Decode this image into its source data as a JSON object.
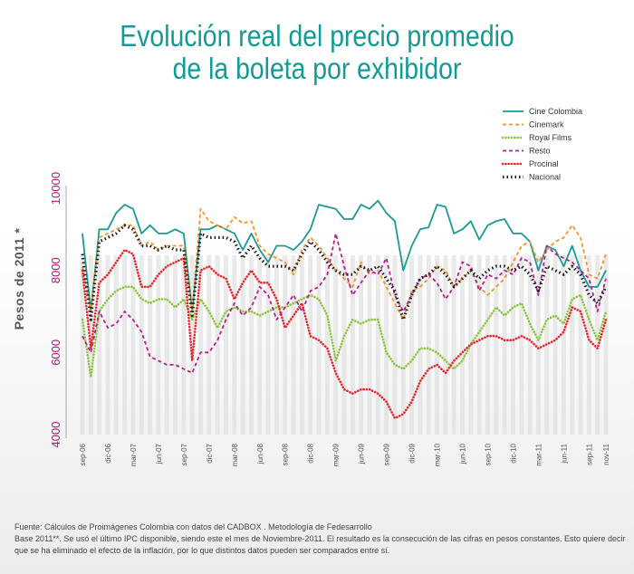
{
  "title_line1": "Evolución real del precio promedio",
  "title_line2": "de la boleta por exhibidor",
  "footer": {
    "line1": "Fuente: Cálculos de Proimágenes Colombia con datos del CADBOX . Metodología de Fedesarrollo",
    "line2": "Base 2011**. Se usó el último IPC disponible, siendo este el mes de Noviembre-2011. El resultado es la consecución de las cifras en pesos constantes. Esto quiere decir",
    "line3": "que se ha eliminado el efecto de la inflación, por lo que distintos datos pueden ser comparados entre sí."
  },
  "chart_data": {
    "type": "line",
    "title": "Evolución real del precio promedio de la boleta por exhibidor",
    "ylabel": "Pesos de  2011 *",
    "ylim": [
      4000,
      10000
    ],
    "yticks": [
      "4000",
      "6000",
      "8000",
      "10000"
    ],
    "xticks": [
      "sep-06",
      "dic-06",
      "mar-07",
      "jun-07",
      "sep-07",
      "dic-07",
      "mar-08",
      "jun-08",
      "sep-08",
      "dic-08",
      "mar-09",
      "jun-09",
      "sep-09",
      "dic-09",
      "mar-10",
      "jun-10",
      "sep-10",
      "dic-10",
      "mar-11",
      "jun-11",
      "sep-11",
      "nov-11"
    ],
    "x": [
      "sep-06",
      "oct-06",
      "nov-06",
      "dic-06",
      "ene-07",
      "feb-07",
      "mar-07",
      "abr-07",
      "may-07",
      "jun-07",
      "jul-07",
      "ago-07",
      "sep-07",
      "oct-07",
      "nov-07",
      "dic-07",
      "ene-08",
      "feb-08",
      "mar-08",
      "abr-08",
      "may-08",
      "jun-08",
      "jul-08",
      "ago-08",
      "sep-08",
      "oct-08",
      "nov-08",
      "dic-08",
      "ene-09",
      "feb-09",
      "mar-09",
      "abr-09",
      "may-09",
      "jun-09",
      "jul-09",
      "ago-09",
      "sep-09",
      "oct-09",
      "nov-09",
      "dic-09",
      "ene-10",
      "feb-10",
      "mar-10",
      "abr-10",
      "may-10",
      "jun-10",
      "jul-10",
      "ago-10",
      "sep-10",
      "oct-10",
      "nov-10",
      "dic-10",
      "ene-11",
      "feb-11",
      "mar-11",
      "abr-11",
      "may-11",
      "jun-11",
      "jul-11",
      "ago-11",
      "sep-11",
      "oct-11",
      "nov-11"
    ],
    "legend_position": "top-right",
    "series": [
      {
        "name": "Cine Colombia",
        "color": "#1a9a97",
        "style": "solid",
        "values": [
          8900,
          7000,
          9000,
          9000,
          9400,
          9600,
          9500,
          8900,
          9100,
          8900,
          8900,
          9000,
          8900,
          7000,
          9000,
          9000,
          9100,
          9000,
          8900,
          8500,
          8900,
          8500,
          8200,
          8600,
          8600,
          8500,
          8700,
          9000,
          9600,
          9550,
          9500,
          9250,
          9250,
          9600,
          9500,
          9700,
          9400,
          9200,
          8000,
          8600,
          9000,
          9050,
          9600,
          9550,
          8900,
          9000,
          9200,
          8750,
          9100,
          9200,
          9250,
          8900,
          8900,
          8700,
          8000,
          8600,
          8500,
          8100,
          8600,
          8000,
          7600,
          7600,
          8000
        ]
      },
      {
        "name": "Cinemark",
        "color": "#f0952a",
        "style": "dashed",
        "values": [
          8100,
          7000,
          8800,
          8900,
          9000,
          9100,
          9100,
          8600,
          8700,
          8500,
          8600,
          8600,
          8600,
          7000,
          9500,
          9200,
          9100,
          9000,
          9300,
          9150,
          9200,
          8600,
          8400,
          8300,
          8200,
          7900,
          8500,
          8800,
          8600,
          8300,
          8000,
          7800,
          7600,
          8200,
          7900,
          8000,
          7600,
          7200,
          6800,
          7500,
          7600,
          7800,
          8100,
          8000,
          7600,
          7800,
          8000,
          7600,
          7400,
          7600,
          7800,
          8200,
          8600,
          8700,
          8200,
          8500,
          8700,
          8800,
          9100,
          8800,
          7900,
          7800,
          8400
        ]
      },
      {
        "name": "Royal Films",
        "color": "#8cc63f",
        "style": "dotted",
        "values": [
          6800,
          5400,
          7000,
          7300,
          7500,
          7600,
          7600,
          7300,
          7200,
          7300,
          7300,
          7100,
          7300,
          6800,
          7300,
          7000,
          6600,
          7000,
          7100,
          7000,
          7000,
          6900,
          7000,
          7100,
          7100,
          7200,
          7300,
          7400,
          7300,
          6900,
          5800,
          6400,
          6800,
          6700,
          6800,
          6800,
          6000,
          5700,
          5600,
          5800,
          6100,
          6100,
          6000,
          5800,
          5600,
          5800,
          6200,
          6500,
          6800,
          7100,
          6900,
          7100,
          7200,
          6700,
          6300,
          6800,
          6900,
          6700,
          7300,
          7400,
          6800,
          6300,
          7000
        ]
      },
      {
        "name": "Resto",
        "color": "#b5208f",
        "style": "dashed",
        "values": [
          6400,
          6000,
          7000,
          6600,
          6700,
          7000,
          6800,
          6500,
          5900,
          5800,
          5700,
          5700,
          5600,
          5500,
          6000,
          6000,
          6300,
          6800,
          7200,
          6900,
          7100,
          7600,
          7400,
          6800,
          7100,
          7400,
          7000,
          7500,
          7600,
          7900,
          8900,
          8100,
          7400,
          7700,
          8000,
          7900,
          8300,
          7400,
          7000,
          7400,
          7800,
          7900,
          7700,
          7300,
          7600,
          8200,
          8100,
          7500,
          7900,
          7800,
          8000,
          7900,
          8300,
          8200,
          7400,
          8600,
          8400,
          8300,
          8200,
          8000,
          7800,
          7000,
          7800
        ]
      },
      {
        "name": "Procinal",
        "color": "#e8242b",
        "style": "dotted",
        "values": [
          8000,
          6100,
          7700,
          7900,
          8200,
          8500,
          8400,
          7600,
          7600,
          7900,
          8100,
          8200,
          8300,
          5800,
          8000,
          8100,
          7900,
          7800,
          7300,
          7700,
          8000,
          7700,
          7700,
          7300,
          6600,
          6900,
          7200,
          6400,
          6300,
          6100,
          5500,
          5100,
          5000,
          5100,
          5100,
          5000,
          4800,
          4400,
          4500,
          4800,
          5300,
          5600,
          5700,
          5500,
          5800,
          6000,
          6200,
          6300,
          6400,
          6400,
          6300,
          6300,
          6400,
          6300,
          6100,
          6200,
          6300,
          6500,
          7100,
          7000,
          6300,
          6100,
          6800
        ]
      },
      {
        "name": "Nacional",
        "color": "#1a1a1a",
        "style": "dotted-thick",
        "values": [
          8400,
          6800,
          8700,
          8800,
          8900,
          9100,
          9000,
          8600,
          8600,
          8500,
          8600,
          8500,
          8500,
          6900,
          8900,
          8800,
          8800,
          8800,
          8700,
          8300,
          8600,
          8300,
          8100,
          8100,
          8100,
          8000,
          8400,
          8700,
          8500,
          8200,
          8000,
          7900,
          7900,
          8100,
          8000,
          8100,
          7800,
          7500,
          6800,
          7400,
          7800,
          7900,
          8100,
          7900,
          7600,
          7800,
          8000,
          7800,
          8000,
          8100,
          8100,
          8000,
          8100,
          7900,
          7500,
          8100,
          8000,
          7900,
          8100,
          7900,
          7400,
          7200,
          7600
        ]
      }
    ]
  }
}
